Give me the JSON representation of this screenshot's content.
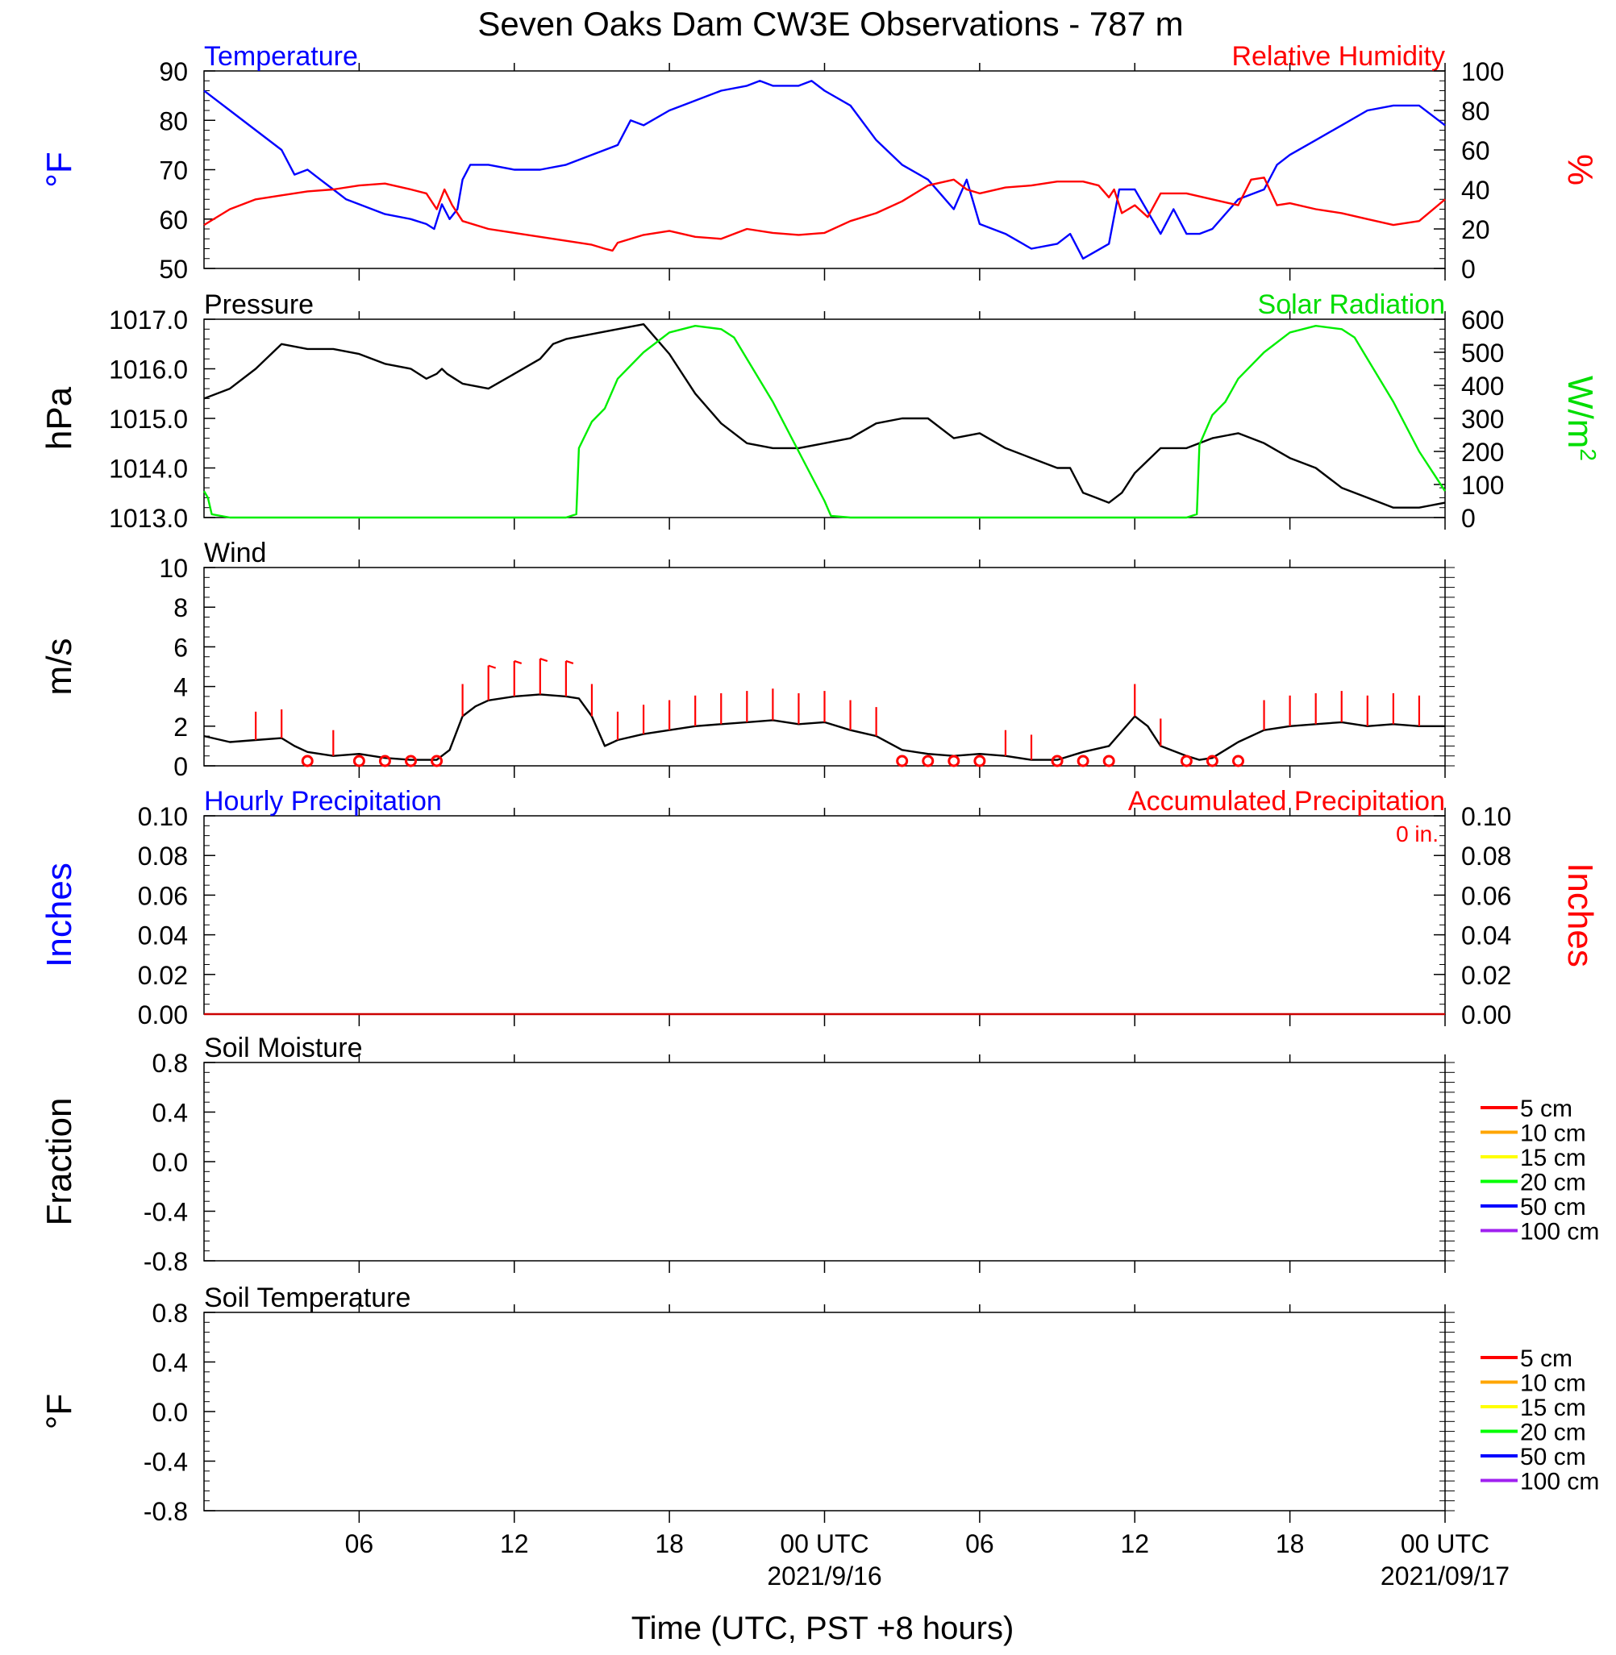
{
  "title": "Seven Oaks Dam CW3E Observations - 787 m",
  "xaxis": {
    "label": "Time (UTC, PST +8 hours)",
    "ticks": [
      "06",
      "12",
      "18",
      "00 UTC",
      "06",
      "12",
      "18",
      "00 UTC"
    ],
    "dates": [
      "2021/9/16",
      "2021/09/17"
    ]
  },
  "colors": {
    "temperature": "#0000ff",
    "humidity": "#ff0000",
    "pressure": "#000000",
    "solar": "#00ee00",
    "wind": "#000000",
    "barb": "#ff0000"
  },
  "chart_data": [
    {
      "type": "line",
      "left_title": "Temperature",
      "right_title": "Relative Humidity",
      "left_ylabel": "°F",
      "right_ylabel": "%",
      "left_ticks": [
        "90",
        "80",
        "70",
        "60",
        "50"
      ],
      "right_ticks": [
        "100",
        "80",
        "60",
        "40",
        "20",
        "0"
      ],
      "ylim": [
        50,
        90
      ],
      "y2lim": [
        0,
        100
      ],
      "x_hours_range": [
        0,
        48
      ],
      "series": [
        {
          "key": "temperature",
          "axis": "left",
          "x_hours": [
            0,
            1,
            2,
            3,
            3.5,
            4,
            4.5,
            5,
            5.5,
            6,
            7,
            8,
            8.6,
            8.9,
            9.2,
            9.5,
            9.8,
            10,
            10.3,
            11,
            12,
            13,
            14,
            15,
            16,
            16.5,
            17,
            18,
            19,
            20,
            21,
            21.5,
            22,
            23,
            23.5,
            24,
            25,
            26,
            27,
            28,
            28.5,
            29,
            29.5,
            30,
            31,
            32,
            33,
            33.5,
            34,
            35,
            35.4,
            36,
            37,
            37.5,
            38,
            38.5,
            39,
            40,
            41,
            41.5,
            42,
            43,
            44,
            45,
            46,
            47,
            48
          ],
          "values": [
            86,
            82,
            78,
            74,
            69,
            70,
            68,
            66,
            64,
            63,
            61,
            60,
            59,
            58,
            63,
            60,
            62,
            68,
            71,
            71,
            70,
            70,
            71,
            73,
            75,
            80,
            79,
            82,
            84,
            86,
            87,
            88,
            87,
            87,
            88,
            86,
            83,
            76,
            71,
            68,
            65,
            62,
            68,
            59,
            57,
            54,
            55,
            57,
            52,
            55,
            66,
            66,
            57,
            62,
            57,
            57,
            58,
            64,
            66,
            71,
            73,
            76,
            79,
            82,
            83,
            83,
            79
          ]
        },
        {
          "key": "humidity",
          "axis": "right",
          "x_hours": [
            0,
            1,
            2,
            3,
            4,
            5,
            6,
            7,
            8,
            8.6,
            9,
            9.3,
            9.6,
            10,
            11,
            12,
            13,
            14,
            15,
            15.5,
            15.8,
            16,
            17,
            18,
            19,
            20,
            21,
            22,
            23,
            24,
            25,
            26,
            27,
            28,
            29,
            29.5,
            30,
            31,
            32,
            33,
            34,
            34.6,
            35,
            35.2,
            35.5,
            36,
            36.5,
            37,
            38,
            39,
            40,
            40.5,
            41,
            41.5,
            42,
            43,
            44,
            45,
            46,
            47,
            48
          ],
          "values": [
            22,
            30,
            35,
            37,
            39,
            40,
            42,
            43,
            40,
            38,
            30,
            40,
            32,
            24,
            20,
            18,
            16,
            14,
            12,
            10,
            9,
            13,
            17,
            19,
            16,
            15,
            20,
            18,
            17,
            18,
            24,
            28,
            34,
            42,
            45,
            40,
            38,
            41,
            42,
            44,
            44,
            42,
            36,
            40,
            28,
            32,
            26,
            38,
            38,
            35,
            32,
            45,
            46,
            32,
            33,
            30,
            28,
            25,
            22,
            24,
            35
          ]
        }
      ]
    },
    {
      "type": "line",
      "left_title": "Pressure",
      "right_title": "Solar Radiation",
      "left_ylabel": "hPa",
      "right_ylabel": "W/m",
      "right_ylabel_sup": "2",
      "left_ticks": [
        "1017.0",
        "1016.0",
        "1015.0",
        "1014.0",
        "1013.0"
      ],
      "right_ticks": [
        "600",
        "500",
        "400",
        "300",
        "200",
        "100",
        "0"
      ],
      "ylim": [
        1013,
        1017
      ],
      "y2lim": [
        0,
        600
      ],
      "x_hours_range": [
        0,
        48
      ],
      "series": [
        {
          "key": "pressure",
          "axis": "left",
          "x_hours": [
            0,
            1,
            2,
            3,
            4,
            5,
            6,
            7,
            8,
            8.6,
            9,
            9.2,
            9.4,
            9.7,
            10,
            11,
            12,
            13,
            13.5,
            14,
            15,
            16,
            17,
            18,
            19,
            20,
            21,
            22,
            23,
            24,
            25,
            26,
            27,
            28,
            29,
            30,
            31,
            32,
            33,
            33.5,
            34,
            34.5,
            35,
            35.5,
            36,
            37,
            38,
            39,
            40,
            41,
            42,
            43,
            44,
            45,
            46,
            47,
            48
          ],
          "values": [
            1015.4,
            1015.6,
            1016.0,
            1016.5,
            1016.4,
            1016.4,
            1016.3,
            1016.1,
            1016.0,
            1015.8,
            1015.9,
            1016.0,
            1015.9,
            1015.8,
            1015.7,
            1015.6,
            1015.9,
            1016.2,
            1016.5,
            1016.6,
            1016.7,
            1016.8,
            1016.9,
            1016.3,
            1015.5,
            1014.9,
            1014.5,
            1014.4,
            1014.4,
            1014.5,
            1014.6,
            1014.9,
            1015.0,
            1015.0,
            1014.6,
            1014.7,
            1014.4,
            1014.2,
            1014.0,
            1014.0,
            1013.5,
            1013.4,
            1013.3,
            1013.5,
            1013.9,
            1014.4,
            1014.4,
            1014.6,
            1014.7,
            1014.5,
            1014.2,
            1014.0,
            1013.6,
            1013.4,
            1013.2,
            1013.2,
            1013.3
          ]
        },
        {
          "key": "solar",
          "axis": "right",
          "x_hours": [
            0,
            0.15,
            0.3,
            1,
            5,
            10,
            14,
            14.4,
            14.5,
            15,
            15.5,
            16,
            17,
            18,
            19,
            20,
            20.5,
            21,
            22,
            23,
            24,
            24.25,
            25,
            30,
            38,
            38.4,
            38.5,
            39,
            39.5,
            40,
            41,
            42,
            43,
            44,
            44.5,
            45,
            46,
            47,
            48
          ],
          "values": [
            80,
            60,
            10,
            0,
            0,
            0,
            0,
            10,
            210,
            290,
            330,
            420,
            500,
            560,
            580,
            570,
            545,
            480,
            350,
            200,
            50,
            5,
            0,
            0,
            0,
            10,
            220,
            310,
            350,
            420,
            500,
            560,
            580,
            570,
            545,
            480,
            350,
            200,
            80
          ]
        }
      ]
    },
    {
      "type": "line",
      "left_title": "Wind",
      "left_ylabel": "m/s",
      "left_ticks": [
        "10",
        "8",
        "6",
        "4",
        "2",
        "0"
      ],
      "ylim": [
        0,
        10
      ],
      "x_hours_range": [
        0,
        48
      ],
      "series": [
        {
          "key": "wind",
          "axis": "left",
          "x_hours": [
            0,
            1,
            2,
            3,
            3.5,
            4,
            5,
            6,
            7,
            8,
            9,
            9.5,
            10,
            10.5,
            11,
            12,
            13,
            14,
            14.5,
            15,
            15.5,
            16,
            17,
            18,
            19,
            20,
            21,
            22,
            23,
            24,
            25,
            26,
            27,
            28,
            29,
            30,
            31,
            32,
            33,
            34,
            35,
            36,
            36.5,
            37,
            38,
            38.5,
            39,
            40,
            41,
            42,
            43,
            44,
            45,
            46,
            47,
            48
          ],
          "values": [
            1.5,
            1.2,
            1.3,
            1.4,
            1.0,
            0.7,
            0.5,
            0.6,
            0.4,
            0.3,
            0.3,
            0.8,
            2.5,
            3.0,
            3.3,
            3.5,
            3.6,
            3.5,
            3.4,
            2.5,
            1.0,
            1.3,
            1.6,
            1.8,
            2.0,
            2.1,
            2.2,
            2.3,
            2.1,
            2.2,
            1.8,
            1.5,
            0.8,
            0.6,
            0.5,
            0.6,
            0.5,
            0.3,
            0.3,
            0.7,
            1.0,
            2.5,
            2.0,
            1.0,
            0.5,
            0.3,
            0.4,
            1.2,
            1.8,
            2.0,
            2.1,
            2.2,
            2.0,
            2.1,
            2.0,
            2.0
          ]
        }
      ],
      "barbs_x_hours": [
        2,
        3,
        4,
        5,
        6,
        7,
        8,
        9,
        10,
        11,
        12,
        13,
        14,
        15,
        16,
        17,
        18,
        19,
        20,
        21,
        22,
        23,
        24,
        25,
        26,
        27,
        28,
        29,
        30,
        31,
        32,
        33,
        34,
        35,
        36,
        37,
        38,
        39,
        40,
        41,
        42,
        43,
        44,
        45,
        46,
        47
      ],
      "calm_x_hours": [
        4,
        6,
        7,
        8,
        9,
        27,
        28,
        29,
        30,
        33,
        34,
        35,
        38,
        39,
        40
      ]
    },
    {
      "type": "line",
      "left_title": "Hourly Precipitation",
      "right_title": "Accumulated Precipitation",
      "annotation": "0 in.",
      "left_ylabel": "Inches",
      "right_ylabel": "Inches",
      "left_ticks": [
        "0.10",
        "0.08",
        "0.06",
        "0.04",
        "0.02",
        "0.00"
      ],
      "right_ticks": [
        "0.10",
        "0.08",
        "0.06",
        "0.04",
        "0.02",
        "0.00"
      ],
      "ylim": [
        0,
        0.1
      ],
      "x_hours_range": [
        0,
        48
      ],
      "series": [
        {
          "key": "precip",
          "axis": "left",
          "x_hours": [
            0,
            48
          ],
          "values": [
            0,
            0
          ]
        }
      ]
    },
    {
      "type": "line",
      "left_title": "Soil Moisture",
      "left_ylabel": "Fraction",
      "left_ticks": [
        "0.8",
        "0.4",
        "0.0",
        "-0.4",
        "-0.8"
      ],
      "ylim": [
        -1,
        1
      ],
      "legend": [
        {
          "label": "5 cm",
          "color": "#ff0000"
        },
        {
          "label": "10 cm",
          "color": "#ffa500"
        },
        {
          "label": "15 cm",
          "color": "#ffff00"
        },
        {
          "label": "20 cm",
          "color": "#00ff00"
        },
        {
          "label": "50 cm",
          "color": "#0000ff"
        },
        {
          "label": "100 cm",
          "color": "#a020f0"
        }
      ]
    },
    {
      "type": "line",
      "left_title": "Soil Temperature",
      "left_ylabel": "°F",
      "left_ticks": [
        "0.8",
        "0.4",
        "0.0",
        "-0.4",
        "-0.8"
      ],
      "ylim": [
        -1,
        1
      ],
      "legend": [
        {
          "label": "5 cm",
          "color": "#ff0000"
        },
        {
          "label": "10 cm",
          "color": "#ffa500"
        },
        {
          "label": "15 cm",
          "color": "#ffff00"
        },
        {
          "label": "20 cm",
          "color": "#00ff00"
        },
        {
          "label": "50 cm",
          "color": "#0000ff"
        },
        {
          "label": "100 cm",
          "color": "#a020f0"
        }
      ]
    }
  ]
}
